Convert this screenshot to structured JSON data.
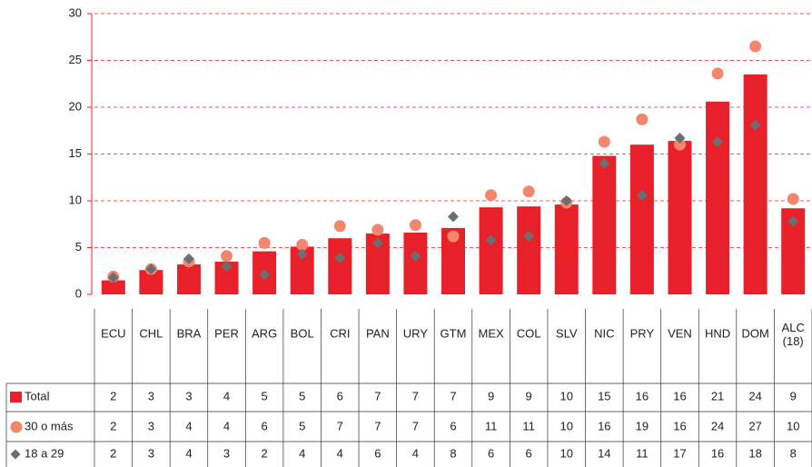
{
  "chart_data": {
    "type": "bar",
    "categories": [
      "ECU",
      "CHL",
      "BRA",
      "PER",
      "ARG",
      "BOL",
      "CRI",
      "PAN",
      "URY",
      "GTM",
      "MEX",
      "COL",
      "SLV",
      "NIC",
      "PRY",
      "VEN",
      "HND",
      "DOM",
      "ALC (18)"
    ],
    "series": [
      {
        "name": "Total",
        "marker": "bar",
        "color": "#e8202a",
        "values": [
          1.5,
          2.6,
          3.2,
          3.5,
          4.6,
          5.1,
          6.0,
          6.5,
          6.6,
          7.1,
          9.3,
          9.4,
          9.6,
          14.8,
          16.0,
          16.4,
          20.6,
          23.5,
          9.2
        ],
        "value_labels": [
          "2",
          "3",
          "3",
          "4",
          "5",
          "5",
          "6",
          "7",
          "7",
          "7",
          "9",
          "9",
          "10",
          "15",
          "16",
          "16",
          "21",
          "24",
          "9"
        ]
      },
      {
        "name": "30 o más",
        "marker": "circle",
        "color": "#f4866e",
        "values": [
          1.9,
          2.7,
          3.5,
          4.1,
          5.5,
          5.3,
          7.3,
          6.9,
          7.4,
          6.2,
          10.6,
          11.0,
          9.8,
          16.3,
          18.7,
          16.0,
          23.6,
          26.5,
          10.2
        ],
        "value_labels": [
          "2",
          "3",
          "4",
          "4",
          "6",
          "5",
          "7",
          "7",
          "7",
          "6",
          "11",
          "11",
          "10",
          "16",
          "19",
          "16",
          "24",
          "27",
          "10"
        ]
      },
      {
        "name": "18 a 29",
        "marker": "diamond",
        "color": "#6d6e71",
        "values": [
          1.8,
          2.7,
          3.8,
          3.0,
          2.1,
          4.3,
          3.9,
          5.5,
          4.1,
          8.3,
          5.8,
          6.2,
          10.0,
          14.0,
          10.6,
          16.7,
          16.3,
          18.1,
          7.8
        ],
        "value_labels": [
          "2",
          "3",
          "4",
          "3",
          "2",
          "4",
          "4",
          "6",
          "4",
          "8",
          "6",
          "6",
          "10",
          "14",
          "11",
          "17",
          "16",
          "18",
          "8"
        ]
      }
    ],
    "ylim": [
      0,
      30
    ],
    "yticks": [
      0,
      5,
      10,
      15,
      20,
      25,
      30
    ],
    "grid": true
  }
}
